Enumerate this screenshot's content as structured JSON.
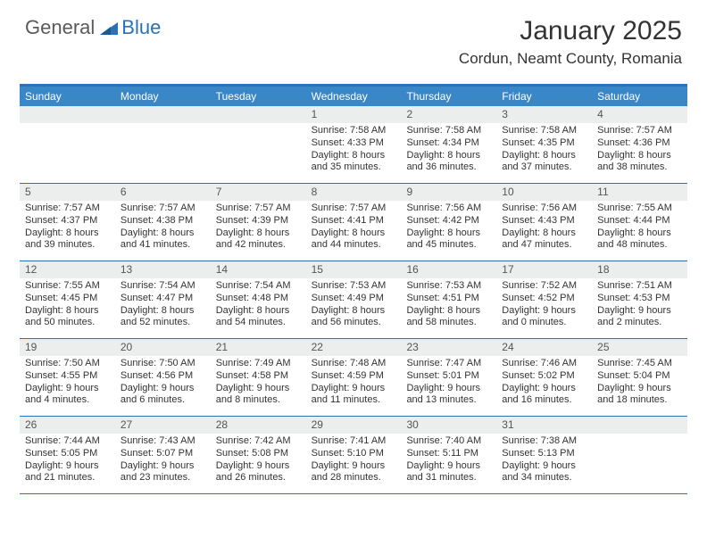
{
  "logo": {
    "general": "General",
    "blue": "Blue"
  },
  "title": "January 2025",
  "location": "Cordun, Neamt County, Romania",
  "colors": {
    "header_bar": "#3a87c8",
    "top_border": "#2a72b5",
    "row_border": "#2a72b5",
    "daynum_bg": "#eceded",
    "text": "#333333",
    "logo_gray": "#5a5a5a",
    "logo_blue": "#2a72b5",
    "background": "#ffffff"
  },
  "weekdays": [
    "Sunday",
    "Monday",
    "Tuesday",
    "Wednesday",
    "Thursday",
    "Friday",
    "Saturday"
  ],
  "weeks": [
    [
      null,
      null,
      null,
      {
        "n": "1",
        "sr": "7:58 AM",
        "ss": "4:33 PM",
        "dl": "8 hours and 35 minutes."
      },
      {
        "n": "2",
        "sr": "7:58 AM",
        "ss": "4:34 PM",
        "dl": "8 hours and 36 minutes."
      },
      {
        "n": "3",
        "sr": "7:58 AM",
        "ss": "4:35 PM",
        "dl": "8 hours and 37 minutes."
      },
      {
        "n": "4",
        "sr": "7:57 AM",
        "ss": "4:36 PM",
        "dl": "8 hours and 38 minutes."
      }
    ],
    [
      {
        "n": "5",
        "sr": "7:57 AM",
        "ss": "4:37 PM",
        "dl": "8 hours and 39 minutes."
      },
      {
        "n": "6",
        "sr": "7:57 AM",
        "ss": "4:38 PM",
        "dl": "8 hours and 41 minutes."
      },
      {
        "n": "7",
        "sr": "7:57 AM",
        "ss": "4:39 PM",
        "dl": "8 hours and 42 minutes."
      },
      {
        "n": "8",
        "sr": "7:57 AM",
        "ss": "4:41 PM",
        "dl": "8 hours and 44 minutes."
      },
      {
        "n": "9",
        "sr": "7:56 AM",
        "ss": "4:42 PM",
        "dl": "8 hours and 45 minutes."
      },
      {
        "n": "10",
        "sr": "7:56 AM",
        "ss": "4:43 PM",
        "dl": "8 hours and 47 minutes."
      },
      {
        "n": "11",
        "sr": "7:55 AM",
        "ss": "4:44 PM",
        "dl": "8 hours and 48 minutes."
      }
    ],
    [
      {
        "n": "12",
        "sr": "7:55 AM",
        "ss": "4:45 PM",
        "dl": "8 hours and 50 minutes."
      },
      {
        "n": "13",
        "sr": "7:54 AM",
        "ss": "4:47 PM",
        "dl": "8 hours and 52 minutes."
      },
      {
        "n": "14",
        "sr": "7:54 AM",
        "ss": "4:48 PM",
        "dl": "8 hours and 54 minutes."
      },
      {
        "n": "15",
        "sr": "7:53 AM",
        "ss": "4:49 PM",
        "dl": "8 hours and 56 minutes."
      },
      {
        "n": "16",
        "sr": "7:53 AM",
        "ss": "4:51 PM",
        "dl": "8 hours and 58 minutes."
      },
      {
        "n": "17",
        "sr": "7:52 AM",
        "ss": "4:52 PM",
        "dl": "9 hours and 0 minutes."
      },
      {
        "n": "18",
        "sr": "7:51 AM",
        "ss": "4:53 PM",
        "dl": "9 hours and 2 minutes."
      }
    ],
    [
      {
        "n": "19",
        "sr": "7:50 AM",
        "ss": "4:55 PM",
        "dl": "9 hours and 4 minutes."
      },
      {
        "n": "20",
        "sr": "7:50 AM",
        "ss": "4:56 PM",
        "dl": "9 hours and 6 minutes."
      },
      {
        "n": "21",
        "sr": "7:49 AM",
        "ss": "4:58 PM",
        "dl": "9 hours and 8 minutes."
      },
      {
        "n": "22",
        "sr": "7:48 AM",
        "ss": "4:59 PM",
        "dl": "9 hours and 11 minutes."
      },
      {
        "n": "23",
        "sr": "7:47 AM",
        "ss": "5:01 PM",
        "dl": "9 hours and 13 minutes."
      },
      {
        "n": "24",
        "sr": "7:46 AM",
        "ss": "5:02 PM",
        "dl": "9 hours and 16 minutes."
      },
      {
        "n": "25",
        "sr": "7:45 AM",
        "ss": "5:04 PM",
        "dl": "9 hours and 18 minutes."
      }
    ],
    [
      {
        "n": "26",
        "sr": "7:44 AM",
        "ss": "5:05 PM",
        "dl": "9 hours and 21 minutes."
      },
      {
        "n": "27",
        "sr": "7:43 AM",
        "ss": "5:07 PM",
        "dl": "9 hours and 23 minutes."
      },
      {
        "n": "28",
        "sr": "7:42 AM",
        "ss": "5:08 PM",
        "dl": "9 hours and 26 minutes."
      },
      {
        "n": "29",
        "sr": "7:41 AM",
        "ss": "5:10 PM",
        "dl": "9 hours and 28 minutes."
      },
      {
        "n": "30",
        "sr": "7:40 AM",
        "ss": "5:11 PM",
        "dl": "9 hours and 31 minutes."
      },
      {
        "n": "31",
        "sr": "7:38 AM",
        "ss": "5:13 PM",
        "dl": "9 hours and 34 minutes."
      },
      null
    ]
  ],
  "labels": {
    "sunrise": "Sunrise:",
    "sunset": "Sunset:",
    "daylight": "Daylight:"
  },
  "typography": {
    "title_fontsize": 30,
    "location_fontsize": 17,
    "weekday_fontsize": 12,
    "daynum_fontsize": 12,
    "body_fontsize": 11
  }
}
